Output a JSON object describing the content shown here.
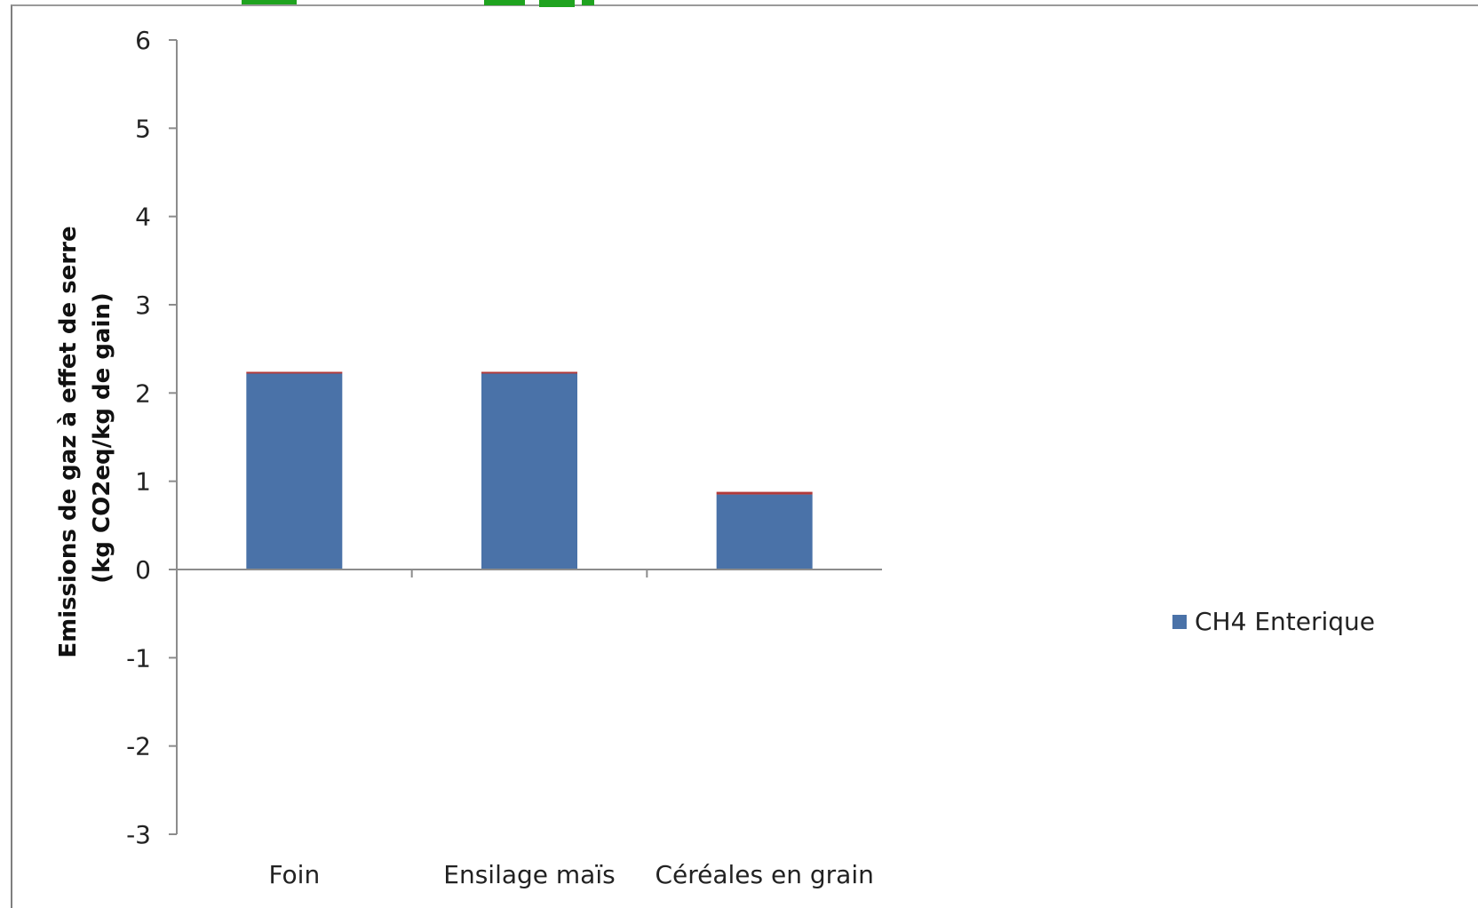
{
  "chart_data": {
    "type": "bar",
    "stacked": true,
    "categories": [
      "Foin",
      "Ensilage maïs",
      "Céréales en grain"
    ],
    "series": [
      {
        "name": "CH4 Enterique",
        "values": [
          2.22,
          2.22,
          0.85
        ],
        "color": "#4a72a8"
      },
      {
        "name": "",
        "values": [
          0.02,
          0.02,
          0.03
        ],
        "color": "#b23a3a"
      }
    ],
    "ylabel_line1": "Emissions de gaz à effet de serre",
    "ylabel_line2": "(kg CO2eq/kg de gain)",
    "ylim": [
      -3,
      6
    ],
    "yticks": [
      6,
      5,
      4,
      3,
      2,
      1,
      0,
      -1,
      -2,
      -3
    ],
    "grid": false,
    "legend_position": "right",
    "legend": [
      {
        "label": "CH4 Enterique",
        "color": "#4a72a8"
      }
    ]
  },
  "colors": {
    "banner": "#1fa31f",
    "axis": "#8c8c8c"
  }
}
